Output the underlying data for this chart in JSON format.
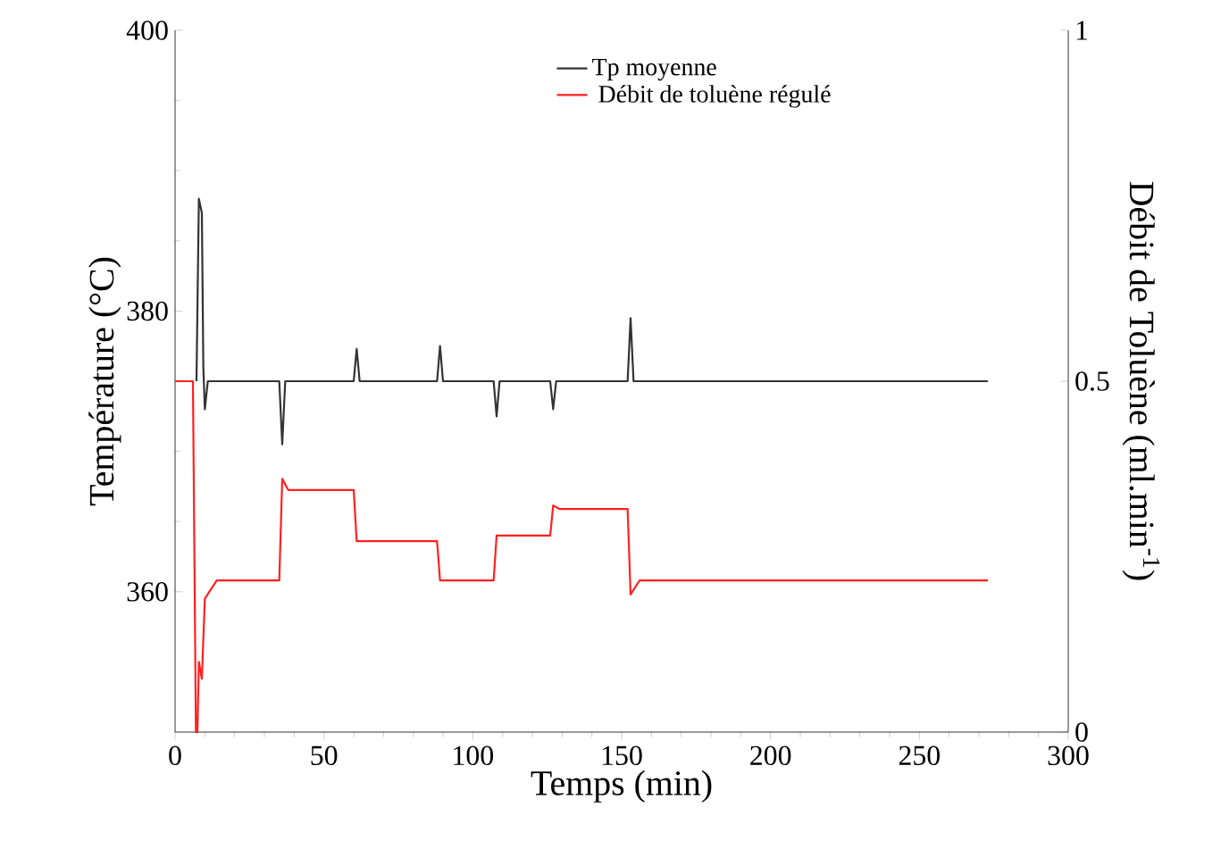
{
  "chart_data": {
    "type": "line",
    "xlabel": "Temps (min)",
    "ylabel": "Température (°C)",
    "y2label": "Débit de Toluène (ml.min$^{-1}$)",
    "xlim": [
      0,
      300
    ],
    "xticks": [
      0,
      50,
      100,
      150,
      200,
      250,
      300
    ],
    "ylim": [
      350,
      400
    ],
    "yticks": [
      360,
      380,
      400
    ],
    "y2lim": [
      0,
      1
    ],
    "y2ticks": [
      0,
      0.5,
      1
    ],
    "legend": "top right",
    "grid": false,
    "marker": "none",
    "line_style": "solid",
    "series": [
      {
        "name": "Tp moyenne",
        "color": "#333333",
        "x": [
          7.2,
          8,
          9,
          9.5,
          10,
          11,
          35,
          36,
          37,
          60,
          61,
          62,
          88,
          89,
          90,
          107,
          108,
          109,
          126,
          127,
          128,
          152,
          153,
          154,
          273
        ],
        "values": [
          375,
          388,
          387,
          376,
          373,
          375,
          375,
          370.5,
          375,
          375,
          377.3,
          375,
          375,
          377.5,
          375,
          375,
          372.5,
          375,
          375,
          373,
          375,
          375,
          379.5,
          375,
          375
        ]
      },
      {
        "name": " Débit de toluène régulé",
        "color": "#ff2020",
        "axis": "y2",
        "x": [
          0,
          6,
          7,
          7.5,
          8,
          9,
          10,
          14,
          35,
          36,
          38,
          60,
          61,
          88,
          89,
          107,
          108,
          126,
          127,
          129,
          152,
          153,
          156,
          273
        ],
        "values": [
          0.5,
          0.5,
          0,
          0,
          0.1,
          0.076,
          0.19,
          0.216,
          0.216,
          0.361,
          0.345,
          0.345,
          0.272,
          0.272,
          0.216,
          0.216,
          0.28,
          0.28,
          0.323,
          0.318,
          0.318,
          0.196,
          0.216,
          0.216
        ]
      }
    ]
  }
}
